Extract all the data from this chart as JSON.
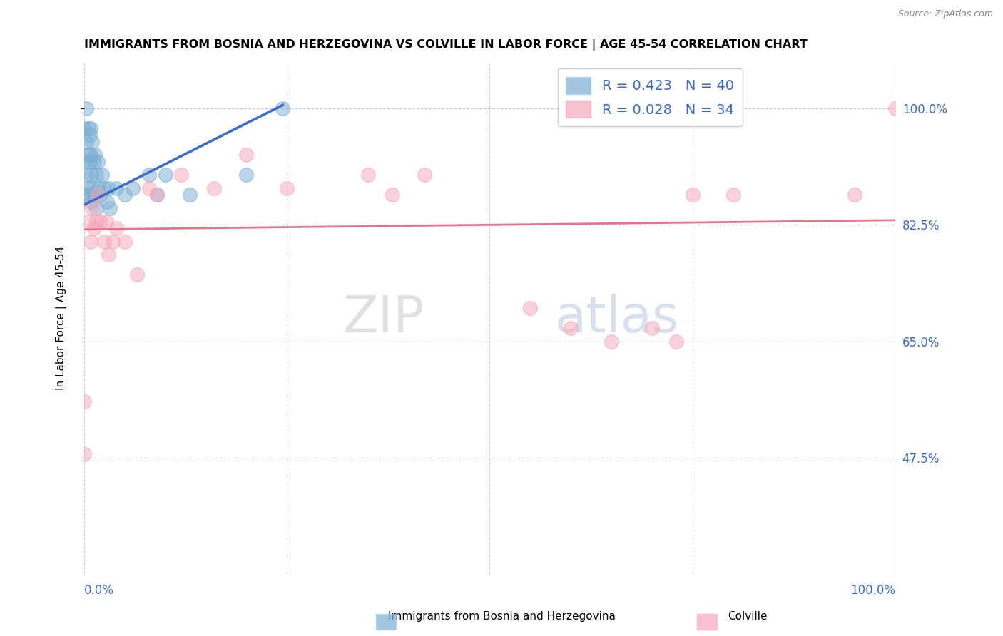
{
  "title": "IMMIGRANTS FROM BOSNIA AND HERZEGOVINA VS COLVILLE IN LABOR FORCE | AGE 45-54 CORRELATION CHART",
  "source": "Source: ZipAtlas.com",
  "ylabel": "In Labor Force | Age 45-54",
  "blue_color": "#7BAFD4",
  "pink_color": "#F4A7B9",
  "blue_line_color": "#3B6CC5",
  "pink_line_color": "#E8728A",
  "R_blue": 0.423,
  "N_blue": 40,
  "R_pink": 0.028,
  "N_pink": 34,
  "legend_label_blue": "Immigrants from Bosnia and Herzegovina",
  "legend_label_pink": "Colville",
  "watermark_zip": "ZIP",
  "watermark_atlas": "atlas",
  "ytick_vals": [
    0.475,
    0.65,
    0.825,
    1.0
  ],
  "ytick_labels": [
    "47.5%",
    "65.0%",
    "82.5%",
    "100.0%"
  ],
  "xlim": [
    0.0,
    1.0
  ],
  "ylim": [
    0.3,
    1.07
  ],
  "blue_line_x": [
    0.0,
    0.245
  ],
  "blue_line_y": [
    0.855,
    1.005
  ],
  "pink_line_x": [
    0.0,
    1.0
  ],
  "pink_line_y": [
    0.818,
    0.832
  ],
  "blue_scatter_x": [
    0.0,
    0.0,
    0.0,
    0.003,
    0.003,
    0.003,
    0.005,
    0.005,
    0.005,
    0.007,
    0.007,
    0.007,
    0.008,
    0.008,
    0.009,
    0.009,
    0.01,
    0.01,
    0.012,
    0.012,
    0.013,
    0.015,
    0.015,
    0.017,
    0.018,
    0.02,
    0.022,
    0.025,
    0.028,
    0.03,
    0.032,
    0.04,
    0.05,
    0.06,
    0.08,
    0.09,
    0.1,
    0.13,
    0.2,
    0.245
  ],
  "blue_scatter_y": [
    0.97,
    0.92,
    0.87,
    1.0,
    0.95,
    0.9,
    0.97,
    0.93,
    0.88,
    0.96,
    0.92,
    0.87,
    0.97,
    0.93,
    0.9,
    0.86,
    0.95,
    0.88,
    0.92,
    0.87,
    0.93,
    0.9,
    0.85,
    0.92,
    0.88,
    0.87,
    0.9,
    0.88,
    0.86,
    0.88,
    0.85,
    0.88,
    0.87,
    0.88,
    0.9,
    0.87,
    0.9,
    0.87,
    0.9,
    1.0
  ],
  "pink_scatter_x": [
    0.0,
    0.0,
    0.005,
    0.008,
    0.01,
    0.012,
    0.015,
    0.017,
    0.02,
    0.025,
    0.027,
    0.03,
    0.035,
    0.04,
    0.05,
    0.065,
    0.08,
    0.09,
    0.12,
    0.16,
    0.2,
    0.25,
    0.35,
    0.38,
    0.42,
    0.55,
    0.6,
    0.65,
    0.7,
    0.73,
    0.75,
    0.8,
    0.95,
    1.0
  ],
  "pink_scatter_y": [
    0.56,
    0.48,
    0.83,
    0.8,
    0.85,
    0.82,
    0.83,
    0.87,
    0.83,
    0.8,
    0.83,
    0.78,
    0.8,
    0.82,
    0.8,
    0.75,
    0.88,
    0.87,
    0.9,
    0.88,
    0.93,
    0.88,
    0.9,
    0.87,
    0.9,
    0.7,
    0.67,
    0.65,
    0.67,
    0.65,
    0.87,
    0.87,
    0.87,
    1.0
  ]
}
